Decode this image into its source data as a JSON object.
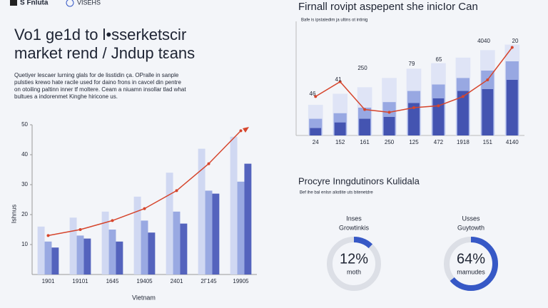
{
  "header": {
    "logo": "S Fnluta",
    "brand": "VISEHS",
    "title": [
      "Vo1 ge1d to l•sserketscir",
      "market rend / Jndup tεans"
    ],
    "body": [
      "Quetiyer lescaer lurning glals for de lisstidin ça. OPralle in sanple",
      "pulsties krewo hate racile used for daino frons in cavcel din pentre",
      "on otoiling paltinn inner tf moltere. Ceam a niuamn insollar tlad what",
      "bultues a indorenmet Kinghe hiricone us."
    ]
  },
  "chart_data": [
    {
      "type": "bar",
      "y_label": "Ishnus",
      "x_label": "Vietnam",
      "categories": [
        "1901",
        "19101",
        "1645",
        "19405",
        "2401",
        "2Γ145",
        "19905"
      ],
      "series": [
        {
          "color": "#cdd6f1",
          "values": [
            16,
            19,
            21,
            26,
            34,
            42,
            46
          ]
        },
        {
          "color": "#93a4e0",
          "values": [
            11,
            13,
            15,
            18,
            21,
            28,
            31
          ]
        },
        {
          "color": "#4b5bb9",
          "values": [
            9,
            12,
            11,
            14,
            17,
            27,
            37
          ]
        },
        {
          "type": "line",
          "color": "#d6452c",
          "values": [
            13,
            15,
            18,
            22,
            28,
            37,
            48
          ]
        }
      ],
      "ylim": [
        0,
        50
      ],
      "yticks": [
        10,
        20,
        30,
        40,
        50
      ]
    },
    {
      "type": "bar",
      "title": "Firnall rovipt aspepent she inicIor Can",
      "subtitle": "Bafe is ipstatedim ja ultins ot intinig",
      "categories": [
        "24",
        "152",
        "161",
        "250",
        "125",
        "472",
        "1918",
        "151",
        "4140"
      ],
      "series": [
        {
          "color": "#dde3f6",
          "values": [
            33,
            45,
            52,
            62,
            72,
            78,
            84,
            92,
            98
          ]
        },
        {
          "color": "#93a4e0",
          "values": [
            18,
            24,
            30,
            36,
            48,
            55,
            62,
            70,
            80
          ]
        },
        {
          "color": "#3f4fae",
          "values": [
            8,
            14,
            18,
            20,
            35,
            40,
            48,
            50,
            60
          ]
        },
        {
          "type": "line",
          "color": "#d6452c",
          "values": [
            42,
            58,
            28,
            25,
            30,
            32,
            42,
            60,
            95
          ]
        }
      ],
      "ylim": [
        0,
        100
      ],
      "annotations": [
        "46",
        "41",
        "250",
        "79",
        "65",
        "4040",
        "20"
      ]
    },
    {
      "type": "donut",
      "title": "Procyre Inngdutinors Kulidala",
      "subtitle": "Bef ihe bal enlsn aliotlite uts bitenetdre",
      "items": [
        {
          "label": [
            "Inses",
            "Growtinkis"
          ],
          "value": 12,
          "value_label": "12%",
          "caption": "moth"
        },
        {
          "label": [
            "Usses",
            "Guytowth"
          ],
          "value": 64,
          "value_label": "64%",
          "caption": "mamudes"
        }
      ],
      "color": "#3658c6",
      "track": "#dcdfe6"
    }
  ]
}
